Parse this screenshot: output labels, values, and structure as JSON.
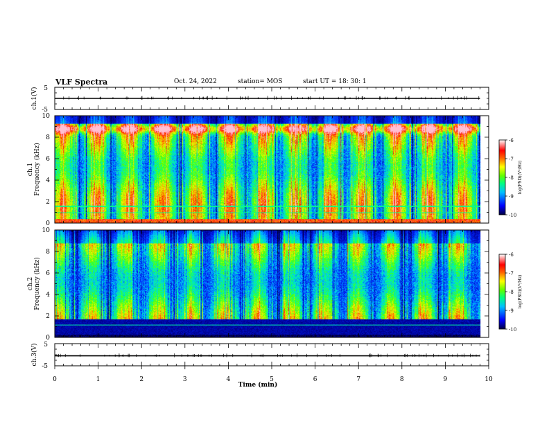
{
  "header": {
    "title": "VLF Spectra",
    "date": "Oct. 24, 2022",
    "station": "station= MOS",
    "start_ut": "start UT =  18: 30: 1"
  },
  "colors": {
    "spectrogram_scale": [
      "#000000",
      "#000080",
      "#0000ff",
      "#00a0ff",
      "#00e0ff",
      "#00ff80",
      "#40ff00",
      "#c0ff00",
      "#ffff00",
      "#ffa000",
      "#ff2000",
      "#ff60a0",
      "#ffc0e0",
      "#ffffff"
    ]
  },
  "chart_data": [
    {
      "type": "line",
      "id": "ch1-voltage",
      "ylabel": "ch.1(V)",
      "ylim": [
        -5,
        5
      ],
      "yticks": [
        "5",
        "-5"
      ],
      "x": [
        0,
        9.8
      ],
      "y": [
        0,
        0
      ],
      "xlim": [
        0,
        10
      ]
    },
    {
      "type": "heatmap",
      "id": "ch1-spectrogram",
      "ylabel": "ch.1",
      "ylabel2": "Frequency (kHz)",
      "ylim": [
        0,
        10
      ],
      "yticks": [
        "0",
        "2",
        "4",
        "6",
        "8",
        "10"
      ],
      "xlim": [
        0,
        10
      ],
      "data_xmax": 9.8,
      "colorbar": {
        "label": "log(PSD)(V²/Hz)",
        "range": [
          -10,
          -6
        ],
        "ticks": [
          "-6",
          "-7",
          "-8",
          "-9",
          "-10"
        ]
      }
    },
    {
      "type": "heatmap",
      "id": "ch2-spectrogram",
      "ylabel": "ch.2",
      "ylabel2": "Frequency (kHz)",
      "ylim": [
        0,
        10
      ],
      "yticks": [
        "0",
        "2",
        "4",
        "6",
        "8",
        "10"
      ],
      "xlim": [
        0,
        10
      ],
      "data_xmax": 9.8,
      "colorbar": {
        "label": "log(PSD)(V²/Hz)",
        "range": [
          -10,
          -6
        ],
        "ticks": [
          "-6",
          "-7",
          "-8",
          "-9",
          "-10"
        ]
      }
    },
    {
      "type": "line",
      "id": "ch3-voltage",
      "ylabel": "ch.3(V)",
      "ylim": [
        -5,
        5
      ],
      "yticks": [
        "5",
        "-5"
      ],
      "x": [
        0,
        9.8
      ],
      "y": [
        -0.5,
        -0.5
      ],
      "xlim": [
        0,
        10
      ],
      "xlabel": "Time  (min)",
      "xticks": [
        "0",
        "1",
        "2",
        "3",
        "4",
        "5",
        "6",
        "7",
        "8",
        "9",
        "10"
      ]
    }
  ]
}
